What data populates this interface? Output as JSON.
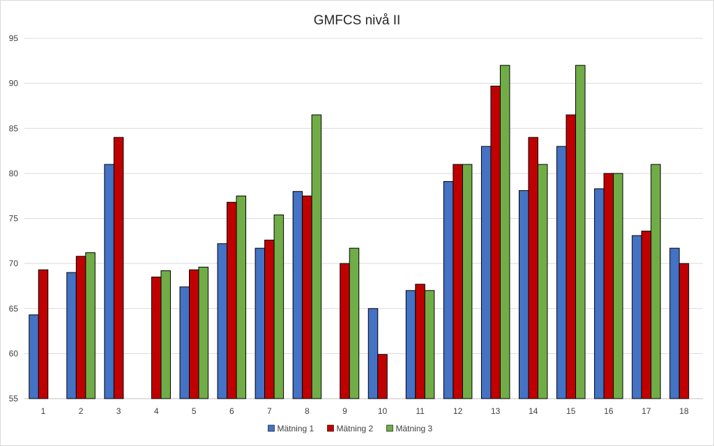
{
  "chart_data": {
    "type": "bar",
    "title": "GMFCS nivå II",
    "xlabel": "",
    "ylabel": "",
    "ylim": [
      55,
      95
    ],
    "yticks": [
      55,
      60,
      65,
      70,
      75,
      80,
      85,
      90,
      95
    ],
    "grid": true,
    "legend": "bottom",
    "categories": [
      "1",
      "2",
      "3",
      "4",
      "5",
      "6",
      "7",
      "8",
      "9",
      "10",
      "11",
      "12",
      "13",
      "14",
      "15",
      "16",
      "17",
      "18"
    ],
    "series": [
      {
        "name": "Mätning 1",
        "color": "#4472c4",
        "values": [
          64.3,
          69.0,
          81.0,
          null,
          67.4,
          72.2,
          71.7,
          78.0,
          null,
          65.0,
          67.0,
          79.1,
          83.0,
          78.1,
          83.0,
          78.3,
          73.1,
          71.7
        ]
      },
      {
        "name": "Mätning 2",
        "color": "#c00000",
        "values": [
          69.3,
          70.8,
          84.0,
          68.5,
          69.3,
          76.8,
          72.6,
          77.5,
          70.0,
          59.9,
          67.7,
          81.0,
          89.7,
          84.0,
          86.5,
          80.0,
          73.6,
          70.0
        ]
      },
      {
        "name": "Mätning 3",
        "color": "#70ad47",
        "values": [
          null,
          71.2,
          null,
          69.2,
          69.6,
          77.5,
          75.4,
          86.5,
          71.7,
          null,
          67.0,
          81.0,
          92.0,
          81.0,
          92.0,
          80.0,
          81.0,
          null
        ]
      }
    ]
  }
}
